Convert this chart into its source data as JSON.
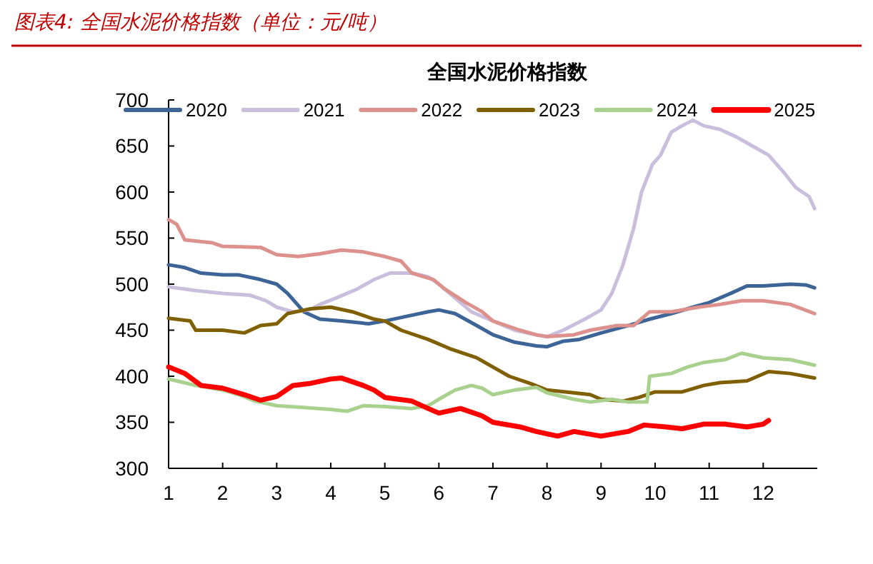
{
  "chart_data": {
    "type": "line",
    "title": "全国水泥价格指数",
    "annotations": [
      "图表4:  全国水泥价格指数（单位：元/吨）"
    ],
    "xlim": [
      1,
      13
    ],
    "xticks": [
      1,
      2,
      3,
      4,
      5,
      6,
      7,
      8,
      9,
      10,
      11,
      12
    ],
    "ylim": [
      300,
      700
    ],
    "yticks": [
      300,
      350,
      400,
      450,
      500,
      550,
      600,
      650,
      700
    ],
    "grid": false,
    "legend": "top",
    "marker": "none",
    "line_style": "solid",
    "series": [
      {
        "name": "2020",
        "color": "#3c6496",
        "x": [
          1,
          1.3,
          1.6,
          2,
          2.3,
          2.7,
          3,
          3.2,
          3.5,
          3.8,
          4.2,
          4.7,
          5,
          5.4,
          5.8,
          6,
          6.3,
          6.7,
          7,
          7.4,
          7.8,
          8,
          8.3,
          8.6,
          9,
          9.5,
          9.9,
          10.3,
          10.7,
          11,
          11.4,
          11.7,
          12,
          12.5,
          12.8,
          12.95
        ],
        "values": [
          521,
          518,
          512,
          510,
          510,
          505,
          500,
          490,
          470,
          462,
          460,
          457,
          460,
          465,
          470,
          472,
          468,
          455,
          445,
          437,
          433,
          432,
          438,
          440,
          447,
          455,
          462,
          468,
          475,
          480,
          490,
          498,
          498,
          500,
          499,
          496
        ]
      },
      {
        "name": "2021",
        "color": "#c9bedc",
        "x": [
          1,
          1.5,
          2,
          2.5,
          2.8,
          3,
          3.3,
          3.6,
          3.8,
          4.1,
          4.5,
          4.8,
          5.1,
          5.5,
          5.8,
          6,
          6.3,
          6.6,
          7,
          7.4,
          7.8,
          8,
          8.3,
          8.7,
          9,
          9.2,
          9.4,
          9.6,
          9.75,
          9.95,
          10.1,
          10.3,
          10.5,
          10.7,
          10.9,
          11.2,
          11.5,
          11.8,
          12.1,
          12.4,
          12.6,
          12.85,
          12.95
        ],
        "values": [
          497,
          493,
          490,
          488,
          482,
          475,
          470,
          472,
          478,
          485,
          495,
          505,
          512,
          512,
          508,
          500,
          485,
          470,
          460,
          450,
          445,
          443,
          450,
          462,
          472,
          490,
          520,
          560,
          600,
          630,
          640,
          665,
          672,
          678,
          672,
          668,
          660,
          650,
          640,
          620,
          605,
          595,
          582
        ]
      },
      {
        "name": "2022",
        "color": "#dc918c",
        "x": [
          1,
          1.15,
          1.3,
          1.8,
          2,
          2.7,
          3,
          3.4,
          3.8,
          4.2,
          4.6,
          5,
          5.3,
          5.5,
          5.9,
          6.1,
          6.5,
          6.8,
          7,
          7.5,
          7.8,
          8,
          8.5,
          8.8,
          9.3,
          9.6,
          9.9,
          10.3,
          10.8,
          11.2,
          11.6,
          12,
          12.5,
          12.95
        ],
        "values": [
          570,
          565,
          548,
          545,
          541,
          540,
          532,
          530,
          533,
          537,
          535,
          530,
          525,
          512,
          505,
          495,
          480,
          470,
          460,
          450,
          445,
          443,
          445,
          450,
          455,
          455,
          470,
          470,
          475,
          478,
          482,
          482,
          478,
          468
        ]
      },
      {
        "name": "2023",
        "color": "#7f5f00",
        "x": [
          1,
          1.4,
          1.5,
          2,
          2.4,
          2.7,
          3,
          3.2,
          3.6,
          4,
          4.4,
          4.8,
          5,
          5.3,
          5.8,
          6.2,
          6.7,
          7,
          7.3,
          7.7,
          8,
          8.5,
          8.8,
          9,
          9.4,
          9.7,
          10,
          10.5,
          10.9,
          11.2,
          11.7,
          12.1,
          12.5,
          12.95
        ],
        "values": [
          463,
          460,
          450,
          450,
          447,
          455,
          457,
          468,
          473,
          475,
          470,
          462,
          460,
          450,
          440,
          430,
          420,
          410,
          400,
          392,
          385,
          382,
          380,
          375,
          373,
          377,
          383,
          383,
          390,
          393,
          395,
          405,
          403,
          398
        ]
      },
      {
        "name": "2024",
        "color": "#a9d18e",
        "x": [
          1,
          1.5,
          2,
          2.3,
          2.6,
          3,
          3.5,
          4,
          4.3,
          4.6,
          5,
          5.5,
          5.8,
          6,
          6.3,
          6.6,
          6.8,
          7,
          7.4,
          7.8,
          8,
          8.5,
          8.8,
          9.2,
          9.5,
          9.85,
          9.9,
          10.3,
          10.6,
          10.9,
          11.3,
          11.6,
          12,
          12.5,
          12.95
        ],
        "values": [
          397,
          390,
          385,
          380,
          373,
          368,
          366,
          364,
          362,
          368,
          367,
          365,
          368,
          375,
          385,
          390,
          387,
          380,
          385,
          388,
          382,
          375,
          372,
          375,
          372,
          372,
          400,
          403,
          410,
          415,
          418,
          425,
          420,
          418,
          412
        ]
      },
      {
        "name": "2025",
        "color": "#ff0000",
        "x": [
          1,
          1.3,
          1.6,
          2,
          2.4,
          2.7,
          3,
          3.3,
          3.6,
          4,
          4.2,
          4.6,
          4.8,
          5,
          5.5,
          5.8,
          6,
          6.4,
          6.8,
          7,
          7.5,
          7.8,
          8.2,
          8.5,
          9,
          9.5,
          9.8,
          10.2,
          10.5,
          10.9,
          11.3,
          11.7,
          12,
          12.1
        ],
        "values": [
          410,
          403,
          390,
          387,
          380,
          374,
          378,
          390,
          392,
          397,
          398,
          390,
          385,
          377,
          373,
          365,
          360,
          365,
          357,
          350,
          345,
          340,
          335,
          340,
          335,
          340,
          347,
          345,
          343,
          348,
          348,
          345,
          348,
          352
        ]
      }
    ]
  }
}
